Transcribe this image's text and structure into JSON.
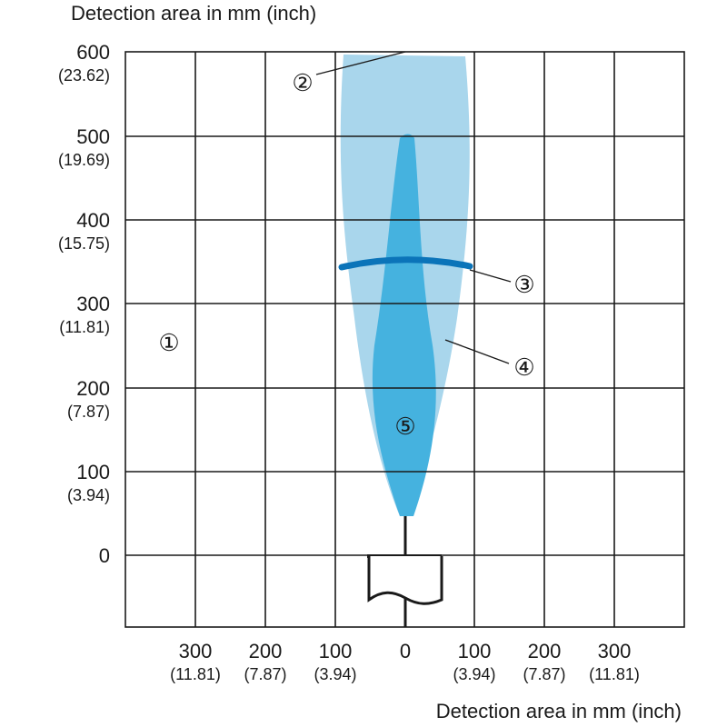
{
  "y_axis_title": "Detection area in mm (inch)",
  "x_axis_title": "Detection area in mm (inch)",
  "y_ticks": [
    {
      "mm": "600",
      "inch": "(23.62)"
    },
    {
      "mm": "500",
      "inch": "(19.69)"
    },
    {
      "mm": "400",
      "inch": "(15.75)"
    },
    {
      "mm": "300",
      "inch": "(11.81)"
    },
    {
      "mm": "200",
      "inch": "(7.87)"
    },
    {
      "mm": "100",
      "inch": "(3.94)"
    },
    {
      "mm": "0",
      "inch": ""
    }
  ],
  "x_ticks": [
    {
      "mm": "300",
      "inch": "(11.81)"
    },
    {
      "mm": "200",
      "inch": "(7.87)"
    },
    {
      "mm": "100",
      "inch": "(3.94)"
    },
    {
      "mm": "0",
      "inch": ""
    },
    {
      "mm": "100",
      "inch": "(3.94)"
    },
    {
      "mm": "200",
      "inch": "(7.87)"
    },
    {
      "mm": "300",
      "inch": "(11.81)"
    }
  ],
  "callouts": {
    "c1": "①",
    "c2": "②",
    "c3": "③",
    "c4": "④",
    "c5": "⑤"
  },
  "colors": {
    "outer_field": "#a9d6ec",
    "inner_field": "#45b2df",
    "range_arc": "#0b74b9",
    "grid": "#1a1a1a"
  }
}
